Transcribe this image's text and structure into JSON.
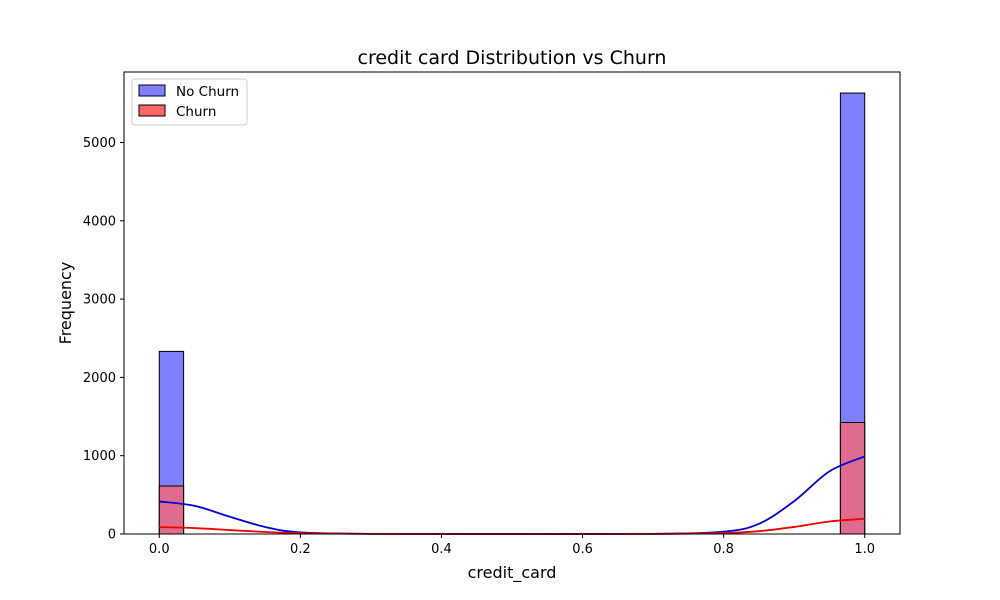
{
  "chart_data": {
    "type": "bar",
    "title": "credit card Distribution vs Churn",
    "xlabel": "credit_card",
    "ylabel": "Frequency",
    "xlim": [
      -0.05,
      1.05
    ],
    "ylim": [
      0,
      5900
    ],
    "xticks": [
      0.0,
      0.2,
      0.4,
      0.6,
      0.8,
      1.0
    ],
    "xtick_labels": [
      "0.0",
      "0.2",
      "0.4",
      "0.6",
      "0.8",
      "1.0"
    ],
    "yticks": [
      0,
      1000,
      2000,
      3000,
      4000,
      5000
    ],
    "ytick_labels": [
      "0",
      "1000",
      "2000",
      "3000",
      "4000",
      "5000"
    ],
    "bin_width": 0.0345,
    "legend_position": "upper-left",
    "grid": false,
    "series": [
      {
        "name": "No Churn",
        "color": "#8080ff",
        "kde_color": "#0000dd",
        "bars": [
          {
            "x": 0.0,
            "value": 2332
          },
          {
            "x": 0.9655,
            "value": 5631
          }
        ],
        "kde": [
          [
            0.0,
            416
          ],
          [
            0.05,
            360
          ],
          [
            0.1,
            220
          ],
          [
            0.15,
            90
          ],
          [
            0.2,
            20
          ],
          [
            0.3,
            2
          ],
          [
            0.5,
            0
          ],
          [
            0.7,
            2
          ],
          [
            0.8,
            30
          ],
          [
            0.85,
            130
          ],
          [
            0.9,
            420
          ],
          [
            0.95,
            800
          ],
          [
            1.0,
            990
          ]
        ]
      },
      {
        "name": "Churn",
        "color": "#ff6666",
        "kde_color": "#ee0000",
        "bars": [
          {
            "x": 0.0,
            "value": 613
          },
          {
            "x": 0.9655,
            "value": 1424
          }
        ],
        "kde": [
          [
            0.0,
            88
          ],
          [
            0.05,
            76
          ],
          [
            0.1,
            50
          ],
          [
            0.15,
            26
          ],
          [
            0.2,
            10
          ],
          [
            0.3,
            2
          ],
          [
            0.5,
            0
          ],
          [
            0.7,
            2
          ],
          [
            0.8,
            12
          ],
          [
            0.85,
            36
          ],
          [
            0.9,
            90
          ],
          [
            0.95,
            160
          ],
          [
            1.0,
            195
          ]
        ]
      }
    ]
  }
}
